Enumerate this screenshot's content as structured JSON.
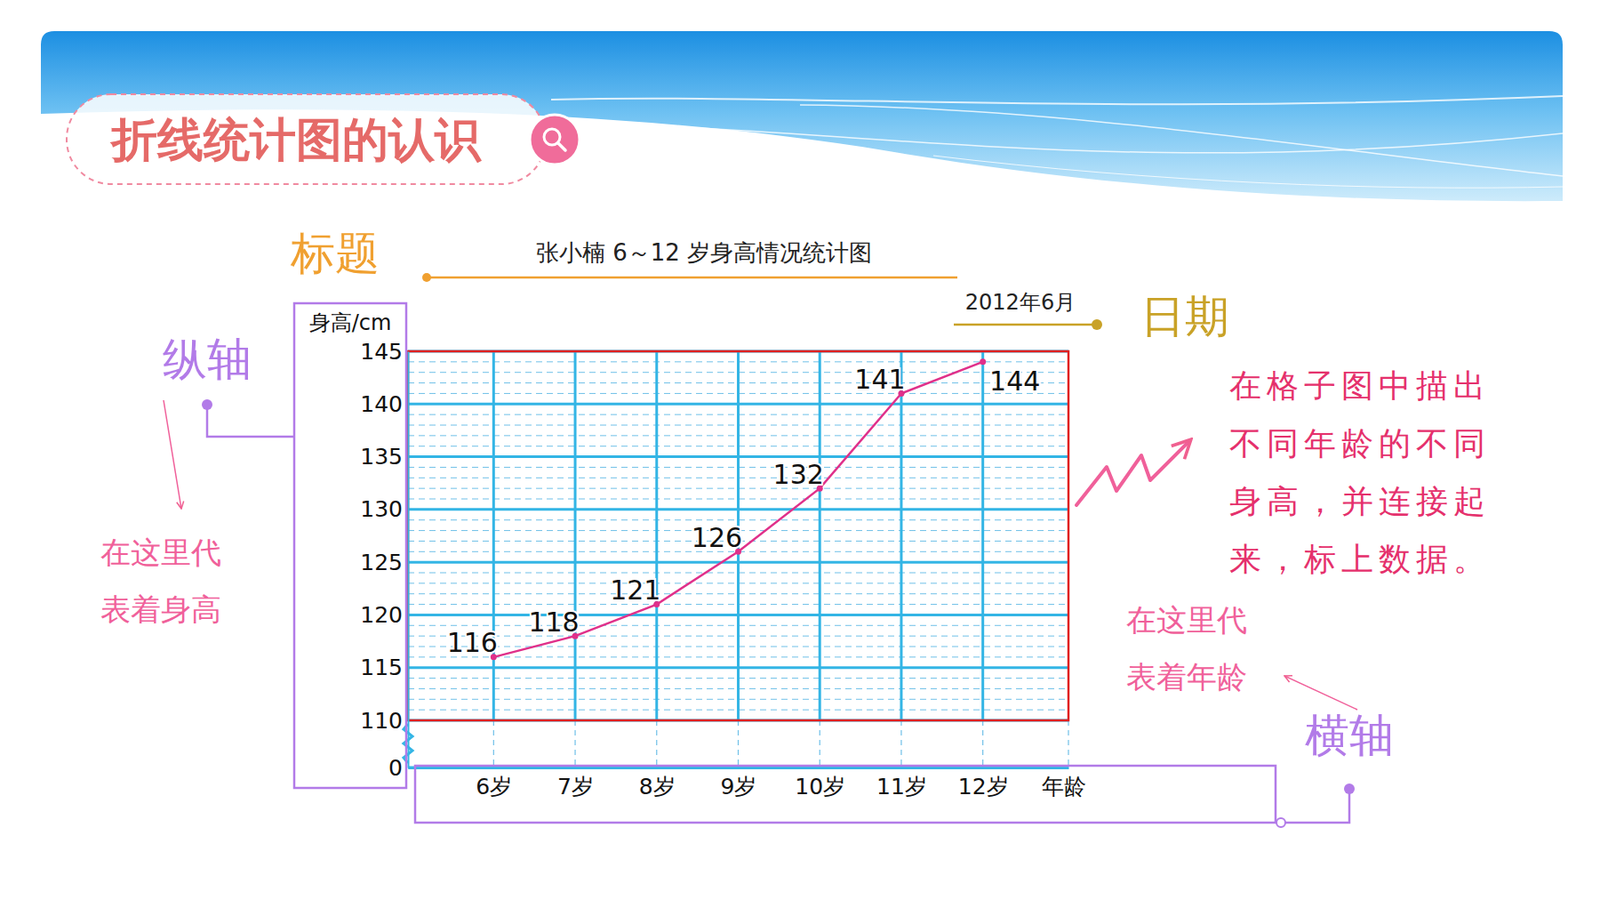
{
  "slide": {
    "heading": "折线统计图的认识",
    "callouts": {
      "title": "标题",
      "date": "日期",
      "y_axis": "纵轴",
      "x_axis": "横轴",
      "y_axis_note": "在这里代表着身高",
      "x_axis_note": "在这里代表着年龄",
      "plot_note": "在格子图中描出不同年龄的不同身高，并连接起来，标上数据。"
    }
  },
  "chart_data": {
    "type": "line",
    "title": "张小楠 6～12 岁身高情况统计图",
    "subtitle": "2012年6月",
    "y_label": "身高/cm",
    "x_label": "年龄",
    "categories": [
      "6岁",
      "7岁",
      "8岁",
      "9岁",
      "10岁",
      "11岁",
      "12岁"
    ],
    "values": [
      116,
      118,
      121,
      126,
      132,
      141,
      144
    ],
    "color": "#e0308a",
    "marker": "circle",
    "ylim": [
      0,
      145
    ],
    "yticks": [
      0,
      110,
      115,
      120,
      125,
      130,
      135,
      140,
      145
    ],
    "grid": true,
    "data_labels": true
  }
}
